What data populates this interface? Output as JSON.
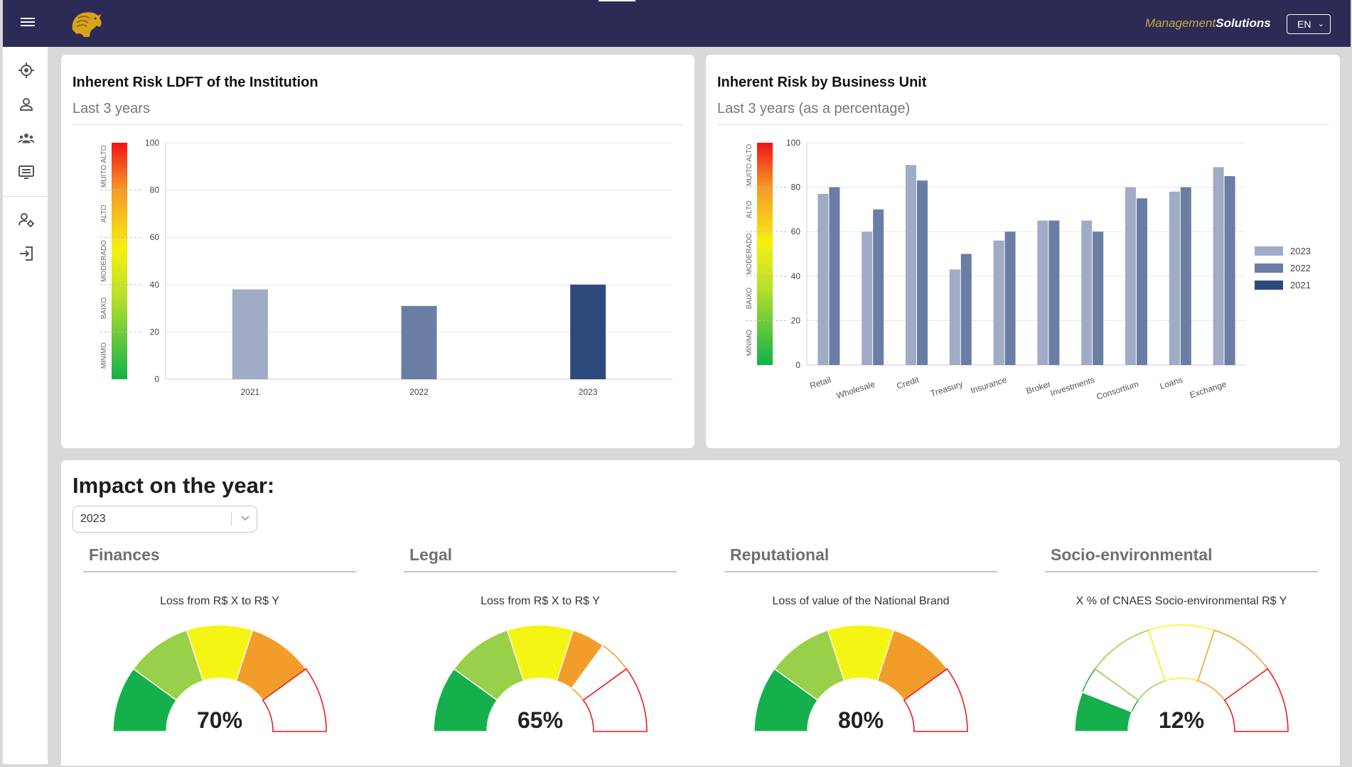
{
  "app": {
    "brand_italic": "Management",
    "brand_bold": "Solutions",
    "language": "EN",
    "logo_icon": "lion-logo-icon",
    "menu_icon": "hamburger-menu-icon"
  },
  "sidebar": {
    "items": [
      {
        "icon": "target-icon"
      },
      {
        "icon": "user-icon"
      },
      {
        "icon": "group-icon"
      },
      {
        "icon": "monitor-list-icon"
      },
      {
        "icon": "user-settings-icon"
      },
      {
        "icon": "sign-in-icon"
      }
    ]
  },
  "scale": {
    "labels": [
      "MÍNIMO",
      "BAIXO",
      "MODERADO",
      "ALTO",
      "MUITO ALTO"
    ]
  },
  "colors": {
    "y2023": "#a0abc6",
    "y2022": "#6a7da5",
    "y2021": "#2e4a7c",
    "gauge": [
      "#15b04c",
      "#99d04a",
      "#f5f514",
      "#f29d2a",
      "#ee1111"
    ]
  },
  "chart_data": [
    {
      "type": "bar",
      "title": "Inherent Risk LDFT of the Institution",
      "subtitle": "Last 3 years",
      "categories": [
        "2021",
        "2022",
        "2023"
      ],
      "values": [
        38,
        31,
        40
      ],
      "ylim": [
        0,
        100
      ],
      "yticks": [
        0,
        20,
        40,
        60,
        80,
        100
      ],
      "grid": true
    },
    {
      "type": "bar",
      "title": "Inherent Risk by Business Unit",
      "subtitle": "Last 3 years (as a percentage)",
      "categories": [
        "Retail",
        "Wholesale",
        "Credit",
        "Treasury",
        "Insurance",
        "Broker",
        "Investments",
        "Consortium",
        "Loans",
        "Exchange"
      ],
      "series": [
        {
          "name": "2023",
          "values": [
            77,
            60,
            90,
            43,
            56,
            65,
            65,
            80,
            78,
            89
          ]
        },
        {
          "name": "2022",
          "values": [
            80,
            70,
            83,
            50,
            60,
            65,
            60,
            75,
            80,
            85
          ]
        },
        {
          "name": "2021",
          "values": [
            null,
            null,
            null,
            null,
            null,
            null,
            null,
            null,
            null,
            null
          ]
        }
      ],
      "ylim": [
        0,
        100
      ],
      "yticks": [
        0,
        20,
        40,
        60,
        80,
        100
      ],
      "legend": "right",
      "grid": true
    }
  ],
  "impact": {
    "title": "Impact on the year:",
    "year": "2023",
    "items": [
      {
        "name": "Finances",
        "desc": "Loss from R$ X to R$ Y",
        "value_text": "70%",
        "value": 70,
        "filled_segments": 4
      },
      {
        "name": "Legal",
        "desc": "Loss from R$ X to R$ Y",
        "value_text": "65%",
        "value": 65,
        "filled_segments": 3.5
      },
      {
        "name": "Reputational",
        "desc": "Loss of value of the National Brand",
        "value_text": "80%",
        "value": 80,
        "filled_segments": 4
      },
      {
        "name": "Socio-environmental",
        "desc": "X % of CNAES Socio-environmental R$ Y",
        "value_text": "12%",
        "value": 12,
        "filled_segments": 0.6
      }
    ]
  }
}
